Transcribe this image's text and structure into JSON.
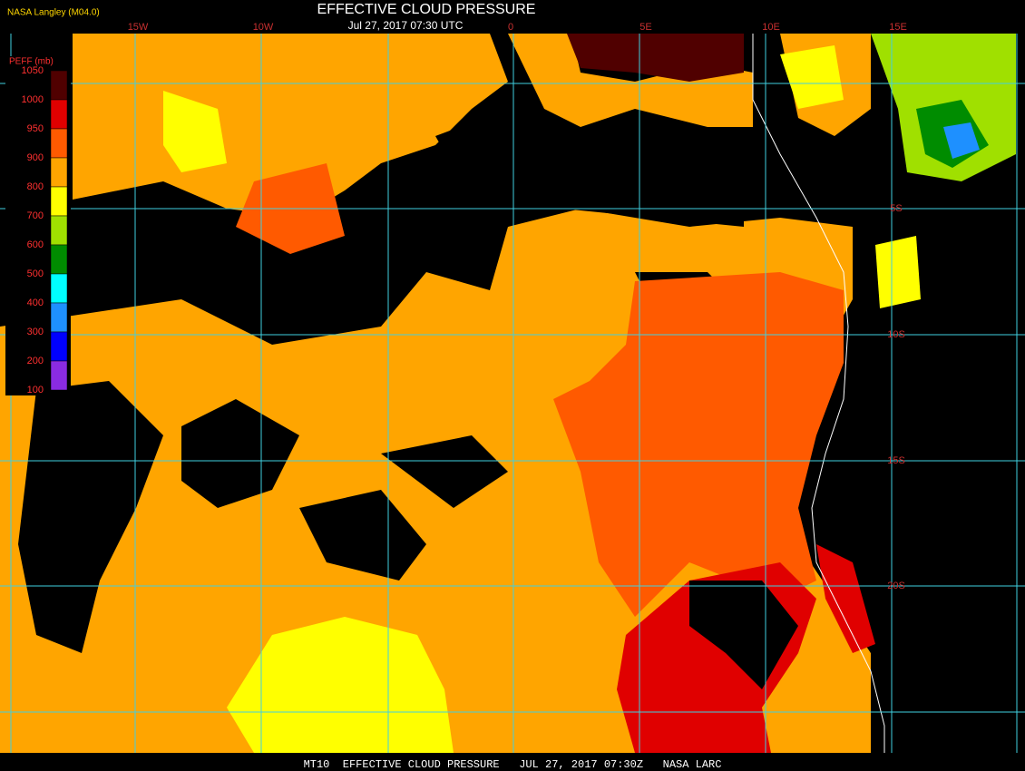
{
  "header": {
    "title": "EFFECTIVE CLOUD PRESSURE",
    "subtitle": "Jul 27, 2017 07:30 UTC",
    "credit": "NASA Langley (M04.0)"
  },
  "legend": {
    "title": "PEFF (mb)",
    "labels": [
      1050,
      1000,
      950,
      900,
      800,
      700,
      600,
      500,
      400,
      300,
      200,
      100
    ],
    "colors": [
      "#500000",
      "#e00000",
      "#ff5a00",
      "#ffa500",
      "#ffff00",
      "#a0e000",
      "#008c00",
      "#00ffff",
      "#1e90ff",
      "#0000ff",
      "#8a2be2"
    ]
  },
  "map": {
    "lon_labels": [
      "15W",
      "10W",
      "0",
      "5E",
      "10E",
      "15E"
    ],
    "lat_labels": [
      "5S",
      "10S",
      "15S",
      "20S"
    ]
  },
  "footer": "MT10  EFFECTIVE CLOUD PRESSURE   JUL 27, 2017 07:30Z   NASA LARC"
}
